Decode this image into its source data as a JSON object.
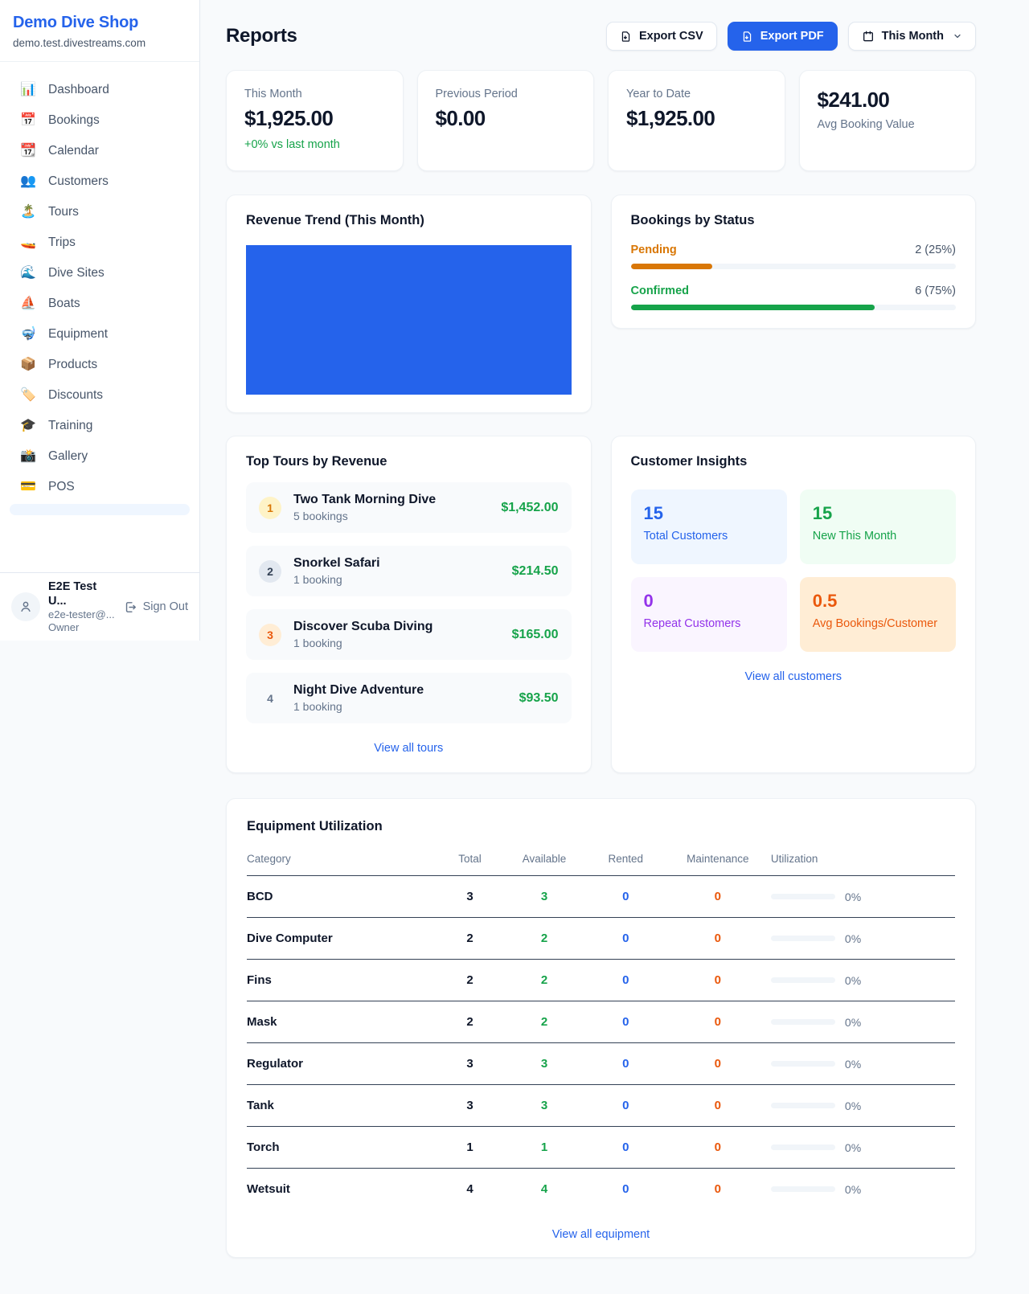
{
  "sidebar": {
    "title": "Demo Dive Shop",
    "subtitle": "demo.test.divestreams.com",
    "nav": [
      {
        "icon": "📊",
        "label": "Dashboard"
      },
      {
        "icon": "📅",
        "label": "Bookings"
      },
      {
        "icon": "📆",
        "label": "Calendar"
      },
      {
        "icon": "👥",
        "label": "Customers"
      },
      {
        "icon": "🏝️",
        "label": "Tours"
      },
      {
        "icon": "🚤",
        "label": "Trips"
      },
      {
        "icon": "🌊",
        "label": "Dive Sites"
      },
      {
        "icon": "⛵",
        "label": "Boats"
      },
      {
        "icon": "🤿",
        "label": "Equipment"
      },
      {
        "icon": "📦",
        "label": "Products"
      },
      {
        "icon": "🏷️",
        "label": "Discounts"
      },
      {
        "icon": "🎓",
        "label": "Training"
      },
      {
        "icon": "📸",
        "label": "Gallery"
      },
      {
        "icon": "💳",
        "label": "POS"
      }
    ],
    "user": {
      "name": "E2E Test U...",
      "email": "e2e-tester@...",
      "role": "Owner",
      "signout_label": "Sign Out"
    }
  },
  "header": {
    "title": "Reports",
    "export_csv_label": "Export CSV",
    "export_pdf_label": "Export PDF",
    "period_label": "This Month"
  },
  "stats": [
    {
      "label": "This Month",
      "value": "$1,925.00",
      "delta": "+0% vs last month"
    },
    {
      "label": "Previous Period",
      "value": "$0.00"
    },
    {
      "label": "Year to Date",
      "value": "$1,925.00"
    },
    {
      "label": "Avg Booking Value",
      "value": "$241.00"
    }
  ],
  "revenue_trend": {
    "title": "Revenue Trend (This Month)",
    "bar_color": "#2563eb"
  },
  "bookings_by_status": {
    "title": "Bookings by Status",
    "rows": [
      {
        "label": "Pending",
        "value": "2 (25%)",
        "pct": "25%",
        "color": "#d97706"
      },
      {
        "label": "Confirmed",
        "value": "6 (75%)",
        "pct": "75%",
        "color": "#16a34a"
      }
    ]
  },
  "top_tours": {
    "title": "Top Tours by Revenue",
    "rows": [
      {
        "rank": "1",
        "name": "Two Tank Morning Dive",
        "sub": "5 bookings",
        "amount": "$1,452.00",
        "badge_bg": "#fef3c7",
        "badge_fg": "#d97706"
      },
      {
        "rank": "2",
        "name": "Snorkel Safari",
        "sub": "1 booking",
        "amount": "$214.50",
        "badge_bg": "#e2e8f0",
        "badge_fg": "#334155"
      },
      {
        "rank": "3",
        "name": "Discover Scuba Diving",
        "sub": "1 booking",
        "amount": "$165.00",
        "badge_bg": "#ffedd5",
        "badge_fg": "#ea580c"
      },
      {
        "rank": "4",
        "name": "Night Dive Adventure",
        "sub": "1 booking",
        "amount": "$93.50",
        "badge_bg": "transparent",
        "badge_fg": "#64748b"
      }
    ],
    "link": "View all tours"
  },
  "customer_insights": {
    "title": "Customer Insights",
    "tiles": [
      {
        "num": "15",
        "label": "Total Customers",
        "bg": "#eff6ff",
        "fg": "#2563eb"
      },
      {
        "num": "15",
        "label": "New This Month",
        "bg": "#f0fdf4",
        "fg": "#16a34a"
      },
      {
        "num": "0",
        "label": "Repeat Customers",
        "bg": "#faf5ff",
        "fg": "#9333ea"
      },
      {
        "num": "0.5",
        "label": "Avg Bookings/Customer",
        "bg": "#ffedd5",
        "fg": "#ea580c"
      }
    ],
    "link": "View all customers"
  },
  "equipment": {
    "title": "Equipment Utilization",
    "columns": [
      "Category",
      "Total",
      "Available",
      "Rented",
      "Maintenance",
      "Utilization"
    ],
    "rows": [
      {
        "category": "BCD",
        "total": "3",
        "available": "3",
        "rented": "0",
        "maintenance": "0",
        "utilization": "0%",
        "util_pct": "0%"
      },
      {
        "category": "Dive Computer",
        "total": "2",
        "available": "2",
        "rented": "0",
        "maintenance": "0",
        "utilization": "0%",
        "util_pct": "0%"
      },
      {
        "category": "Fins",
        "total": "2",
        "available": "2",
        "rented": "0",
        "maintenance": "0",
        "utilization": "0%",
        "util_pct": "0%"
      },
      {
        "category": "Mask",
        "total": "2",
        "available": "2",
        "rented": "0",
        "maintenance": "0",
        "utilization": "0%",
        "util_pct": "0%"
      },
      {
        "category": "Regulator",
        "total": "3",
        "available": "3",
        "rented": "0",
        "maintenance": "0",
        "utilization": "0%",
        "util_pct": "0%"
      },
      {
        "category": "Tank",
        "total": "3",
        "available": "3",
        "rented": "0",
        "maintenance": "0",
        "utilization": "0%",
        "util_pct": "0%"
      },
      {
        "category": "Torch",
        "total": "1",
        "available": "1",
        "rented": "0",
        "maintenance": "0",
        "utilization": "0%",
        "util_pct": "0%"
      },
      {
        "category": "Wetsuit",
        "total": "4",
        "available": "4",
        "rented": "0",
        "maintenance": "0",
        "utilization": "0%",
        "util_pct": "0%"
      }
    ],
    "link": "View all equipment"
  },
  "chart_data": [
    {
      "type": "area",
      "title": "Revenue Trend (This Month)",
      "x": [
        "This Month"
      ],
      "series": [
        {
          "name": "Revenue",
          "values": [
            1925.0
          ]
        }
      ],
      "note": "single solid filled bar spanning full plot area",
      "fill_color": "#2563eb",
      "grid": false
    },
    {
      "type": "bar",
      "title": "Bookings by Status",
      "categories": [
        "Pending",
        "Confirmed"
      ],
      "values": [
        2,
        6
      ],
      "percent": [
        25,
        75
      ],
      "colors": [
        "#d97706",
        "#16a34a"
      ],
      "orientation": "horizontal"
    }
  ]
}
